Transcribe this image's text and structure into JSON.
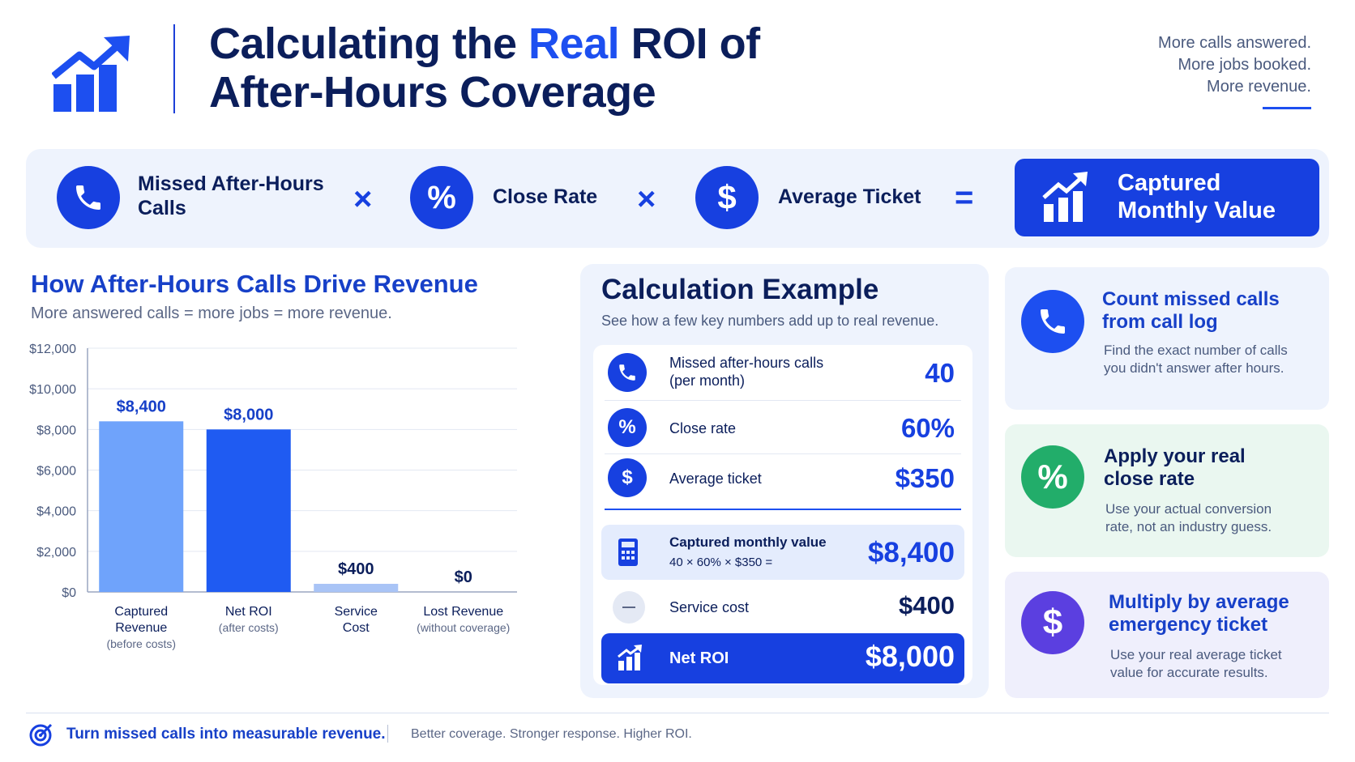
{
  "header": {
    "title_part1": "Calculating the ",
    "title_highlight": "Real",
    "title_part2": " ROI of",
    "title_line2": "After-Hours Coverage",
    "tagline": [
      "More calls answered.",
      "More jobs booked.",
      "More revenue."
    ],
    "icon": "growth-chart-icon"
  },
  "formula": {
    "items": [
      {
        "label_line1": "Missed After-Hours",
        "label_line2": "Calls",
        "icon": "phone-icon"
      },
      {
        "label_line1": "Close Rate",
        "label_line2": "",
        "icon": "percent-icon",
        "glyph": "%"
      },
      {
        "label_line1": "Average Ticket",
        "label_line2": "",
        "icon": "dollar-icon",
        "glyph": "$"
      }
    ],
    "operators": [
      "×",
      "×",
      "="
    ],
    "result_line1": "Captured",
    "result_line2": "Monthly Value",
    "result_icon": "growth-chart-icon"
  },
  "chart_section": {
    "title": "How After-Hours Calls Drive Revenue",
    "subtitle": "More answered calls = more jobs = more revenue."
  },
  "chart_data": {
    "type": "bar",
    "categories": [
      {
        "line1": "Captured",
        "line2": "Revenue",
        "line3": "(before costs)"
      },
      {
        "line1": "Net ROI",
        "line2": "(after costs)",
        "line3": ""
      },
      {
        "line1": "Service",
        "line2": "Cost",
        "line3": ""
      },
      {
        "line1": "Lost Revenue",
        "line2": "(without coverage)",
        "line3": ""
      }
    ],
    "values": [
      8400,
      8000,
      400,
      0
    ],
    "data_labels": [
      "$8,400",
      "$8,000",
      "$400",
      "$0"
    ],
    "bar_colors": [
      "#6fa3fb",
      "#1f5bf2",
      "#a9c4f6",
      "#a9c4f6"
    ],
    "ylim": [
      0,
      12000
    ],
    "yticks": [
      0,
      2000,
      4000,
      6000,
      8000,
      10000,
      12000
    ],
    "ytick_labels": [
      "$0",
      "$2,000",
      "$4,000",
      "$6,000",
      "$8,000",
      "$10,000",
      "$12,000"
    ],
    "grid": true,
    "xlabel": "",
    "ylabel": ""
  },
  "calculation": {
    "title": "Calculation Example",
    "subtitle": "See how a few key numbers add up to real revenue.",
    "rows": [
      {
        "label_line1": "Missed after-hours calls",
        "label_line2": "(per month)",
        "value": "40",
        "icon": "phone-icon"
      },
      {
        "label_line1": "Close rate",
        "label_line2": "",
        "value": "60%",
        "icon": "percent-icon",
        "glyph": "%"
      },
      {
        "label_line1": "Average ticket",
        "label_line2": "",
        "value": "$350",
        "icon": "dollar-icon",
        "glyph": "$"
      }
    ],
    "captured": {
      "label": "Captured monthly value",
      "formula": "40 × 60% × $350 =",
      "value": "$8,400",
      "icon": "calculator-icon"
    },
    "service": {
      "label": "Service cost",
      "value": "$400",
      "icon": "minus-icon"
    },
    "net_roi": {
      "label": "Net ROI",
      "value": "$8,000",
      "icon": "growth-chart-icon"
    }
  },
  "steps": [
    {
      "title_line1": "Count missed calls",
      "title_line2": "from call log",
      "text": "Find the exact number of calls you didn't answer after hours.",
      "icon": "phone-icon",
      "color": "#1d4ff0",
      "bg": "#eef3fd",
      "title_color": "#1740c8"
    },
    {
      "title_line1": "Apply your real",
      "title_line2": "close rate",
      "text": "Use your actual conversion rate, not an industry guess.",
      "icon": "percent-icon",
      "glyph": "%",
      "color": "#22ad6a",
      "bg": "#eaf7f0",
      "title_color": "#0b1e5b"
    },
    {
      "title_line1": "Multiply by average",
      "title_line2": "emergency ticket",
      "text": "Use your real average ticket value for accurate results.",
      "icon": "dollar-icon",
      "glyph": "$",
      "color": "#5b3fe0",
      "bg": "#efeffc",
      "title_color": "#1740c8"
    }
  ],
  "footer": {
    "main": "Turn missed calls into measurable revenue.",
    "sub": "Better coverage. Stronger response. Higher ROI.",
    "icon": "target-icon"
  }
}
